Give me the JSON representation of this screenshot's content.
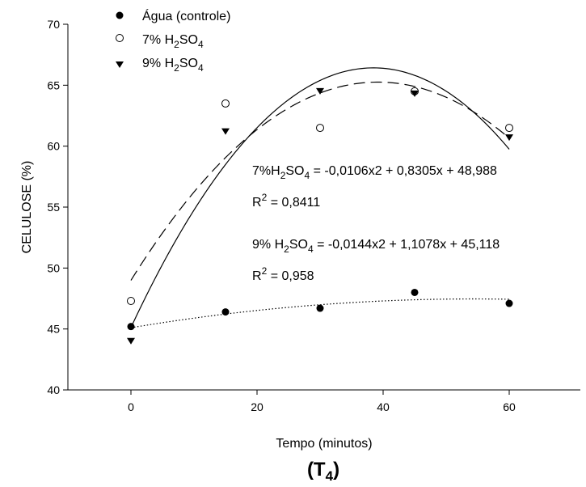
{
  "chart_data": {
    "type": "scatter",
    "panel_label": "(T",
    "panel_label_sub": "4",
    "panel_label_close": ")",
    "xlabel": "Tempo (minutos)",
    "ylabel": "CELULOSE (%)",
    "xlim": [
      -10,
      70
    ],
    "ylim": [
      40,
      70
    ],
    "xticks": [
      0,
      20,
      40,
      60
    ],
    "yticks": [
      40,
      45,
      50,
      55,
      60,
      65,
      70
    ],
    "grid": false,
    "legend_position": "top-left",
    "series": [
      {
        "name": "Água (controle)",
        "marker": "filled-circle",
        "x": [
          0,
          15,
          30,
          45,
          60
        ],
        "y": [
          45.2,
          46.4,
          46.7,
          48.0,
          47.1
        ],
        "fit": {
          "style": "dotted",
          "a": -0.0008,
          "b": 0.087,
          "c": 45.1
        }
      },
      {
        "name_parts": [
          "7% H",
          "2",
          "SO",
          "4"
        ],
        "marker": "open-circle",
        "x": [
          0,
          15,
          30,
          45,
          60
        ],
        "y": [
          47.3,
          63.5,
          61.5,
          64.5,
          61.5
        ],
        "fit": {
          "style": "dashed",
          "a": -0.0106,
          "b": 0.8305,
          "c": 48.988
        }
      },
      {
        "name_parts": [
          "9% H",
          "2",
          "SO",
          "4"
        ],
        "marker": "filled-triangle-down",
        "x": [
          0,
          15,
          30,
          45,
          60
        ],
        "y": [
          44.0,
          61.2,
          64.5,
          64.3,
          60.7
        ],
        "fit": {
          "style": "solid",
          "a": -0.0144,
          "b": 1.1078,
          "c": 45.118
        }
      }
    ],
    "annotations": [
      {
        "parts": [
          "7%H",
          "2",
          "SO",
          "4",
          " = -0,0106x2 + 0,8305x + 48,988"
        ]
      },
      {
        "parts": [
          "R",
          "2",
          " = 0,8411"
        ]
      },
      {
        "parts": [
          "9% H",
          "2",
          "SO",
          "4",
          " = -0,0144x2 + 1,1078x + 45,118"
        ]
      },
      {
        "parts": [
          "R",
          "2",
          " = 0,958"
        ]
      }
    ]
  }
}
